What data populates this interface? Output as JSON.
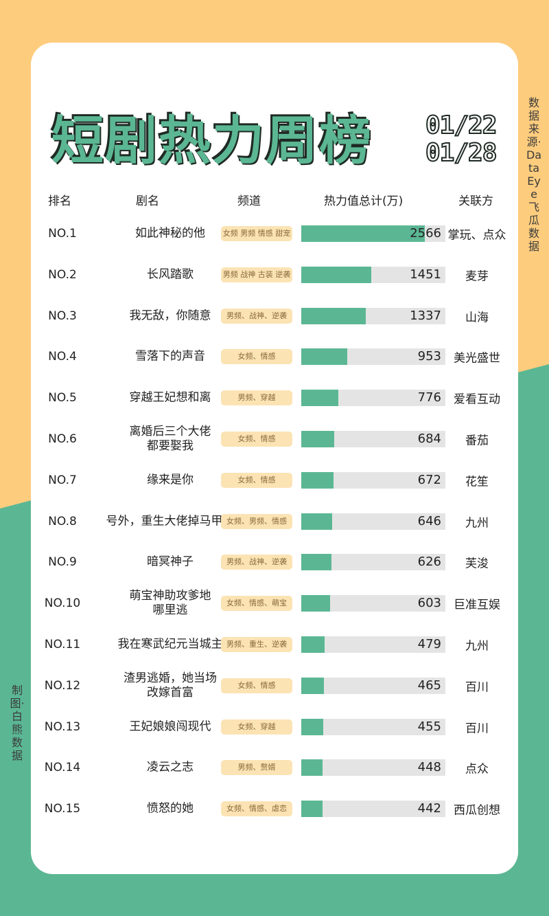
{
  "colors": {
    "background_top": "#fdcc7d",
    "background_bottom": "#5bb793",
    "bar": "#5bb793",
    "bar_track": "#e4e4e4",
    "tag_bg": "#fbe3b4"
  },
  "title": "短剧热力周榜",
  "date_range": {
    "start": "01/22",
    "end": "01/28"
  },
  "source_note": "数据来源·DataEye 飞瓜数据",
  "maker_note": "制图·白熊数据",
  "headers": {
    "rank": "排名",
    "name": "剧名",
    "channel": "频道",
    "heat": "热力值总计(万)",
    "party": "关联方"
  },
  "rows": [
    {
      "rank": "NO.1",
      "name": "如此神秘的他",
      "channel": "女频 男频 情感 甜宠",
      "heat": 2566,
      "party": "掌玩、点众"
    },
    {
      "rank": "NO.2",
      "name": "长风踏歌",
      "channel": "男频 战神 古装 逆袭",
      "heat": 1451,
      "party": "麦芽"
    },
    {
      "rank": "NO.3",
      "name": "我无敌，你随意",
      "channel": "男频、战神、逆袭",
      "heat": 1337,
      "party": "山海"
    },
    {
      "rank": "NO.4",
      "name": "雪落下的声音",
      "channel": "女频、情感",
      "heat": 953,
      "party": "美光盛世"
    },
    {
      "rank": "NO.5",
      "name": "穿越王妃想和离",
      "channel": "男频、穿越",
      "heat": 776,
      "party": "爱看互动"
    },
    {
      "rank": "NO.6",
      "name": "离婚后三个大佬\n都要娶我",
      "channel": "女频、情感",
      "heat": 684,
      "party": "番茄"
    },
    {
      "rank": "NO.7",
      "name": "缘来是你",
      "channel": "女频、情感",
      "heat": 672,
      "party": "花笙"
    },
    {
      "rank": "NO.8",
      "name": "号外，重生大佬掉马甲了",
      "channel": "女频、男频、情感",
      "heat": 646,
      "party": "九州"
    },
    {
      "rank": "NO.9",
      "name": "暗冥神子",
      "channel": "男频、战神、逆袭",
      "heat": 626,
      "party": "芙浚"
    },
    {
      "rank": "NO.10",
      "name": "萌宝神助攻爹地\n哪里逃",
      "channel": "女频、情感、萌宝",
      "heat": 603,
      "party": "巨准互娱"
    },
    {
      "rank": "NO.11",
      "name": "我在寒武纪元当城主",
      "channel": "男频、重生、逆袭",
      "heat": 479,
      "party": "九州"
    },
    {
      "rank": "NO.12",
      "name": "渣男逃婚，她当场\n改嫁首富",
      "channel": "女频、情感",
      "heat": 465,
      "party": "百川"
    },
    {
      "rank": "NO.13",
      "name": "王妃娘娘闯现代",
      "channel": "女频、穿越",
      "heat": 455,
      "party": "百川"
    },
    {
      "rank": "NO.14",
      "name": "凌云之志",
      "channel": "男频、赘婿",
      "heat": 448,
      "party": "点众"
    },
    {
      "rank": "NO.15",
      "name": "愤怒的她",
      "channel": "女频、情感、虐恋",
      "heat": 442,
      "party": "西瓜创想"
    }
  ],
  "chart_data": {
    "type": "bar",
    "title": "短剧热力周榜 01/22-01/28",
    "xlabel": "剧名",
    "ylabel": "热力值总计(万)",
    "categories": [
      "如此神秘的他",
      "长风踏歌",
      "我无敌，你随意",
      "雪落下的声音",
      "穿越王妃想和离",
      "离婚后三个大佬都要娶我",
      "缘来是你",
      "号外，重生大佬掉马甲了",
      "暗冥神子",
      "萌宝神助攻爹地哪里逃",
      "我在寒武纪元当城主",
      "渣男逃婚，她当场改嫁首富",
      "王妃娘娘闯现代",
      "凌云之志",
      "愤怒的她"
    ],
    "values": [
      2566,
      1451,
      1337,
      953,
      776,
      684,
      672,
      646,
      626,
      603,
      479,
      465,
      455,
      448,
      442
    ],
    "orientation": "horizontal",
    "grid": false
  }
}
